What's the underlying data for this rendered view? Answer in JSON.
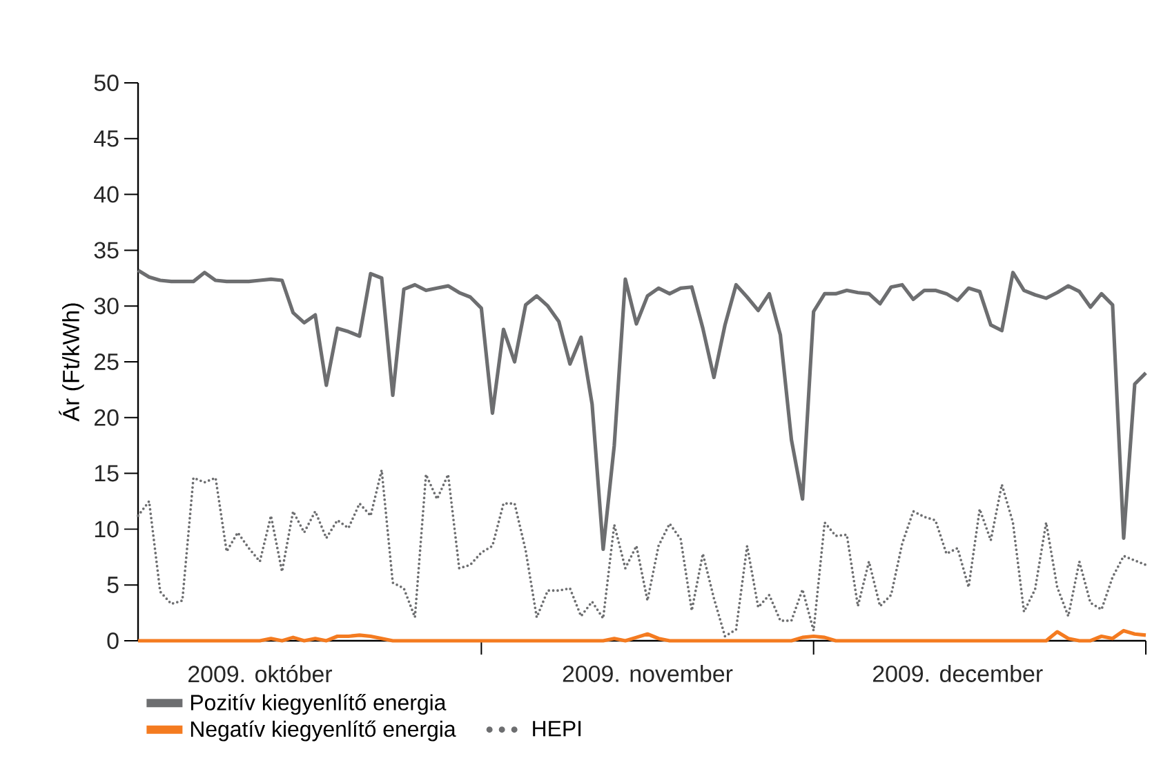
{
  "chart_data": {
    "type": "line",
    "ylabel": "Ár (Ft/kWh)",
    "x": [
      "2009-10-01",
      "2009-10-02",
      "2009-10-03",
      "2009-10-04",
      "2009-10-05",
      "2009-10-06",
      "2009-10-07",
      "2009-10-08",
      "2009-10-09",
      "2009-10-10",
      "2009-10-11",
      "2009-10-12",
      "2009-10-13",
      "2009-10-14",
      "2009-10-15",
      "2009-10-16",
      "2009-10-17",
      "2009-10-18",
      "2009-10-19",
      "2009-10-20",
      "2009-10-21",
      "2009-10-22",
      "2009-10-23",
      "2009-10-24",
      "2009-10-25",
      "2009-10-26",
      "2009-10-27",
      "2009-10-28",
      "2009-10-29",
      "2009-10-30",
      "2009-10-31",
      "2009-11-01",
      "2009-11-02",
      "2009-11-03",
      "2009-11-04",
      "2009-11-05",
      "2009-11-06",
      "2009-11-07",
      "2009-11-08",
      "2009-11-09",
      "2009-11-10",
      "2009-11-11",
      "2009-11-12",
      "2009-11-13",
      "2009-11-14",
      "2009-11-15",
      "2009-11-16",
      "2009-11-17",
      "2009-11-18",
      "2009-11-19",
      "2009-11-20",
      "2009-11-21",
      "2009-11-22",
      "2009-11-23",
      "2009-11-24",
      "2009-11-25",
      "2009-11-26",
      "2009-11-27",
      "2009-11-28",
      "2009-11-29",
      "2009-11-30",
      "2009-12-01",
      "2009-12-02",
      "2009-12-03",
      "2009-12-04",
      "2009-12-05",
      "2009-12-06",
      "2009-12-07",
      "2009-12-08",
      "2009-12-09",
      "2009-12-10",
      "2009-12-11",
      "2009-12-12",
      "2009-12-13",
      "2009-12-14",
      "2009-12-15",
      "2009-12-16",
      "2009-12-17",
      "2009-12-18",
      "2009-12-19",
      "2009-12-20",
      "2009-12-21",
      "2009-12-22",
      "2009-12-23",
      "2009-12-24",
      "2009-12-25",
      "2009-12-26",
      "2009-12-27",
      "2009-12-28",
      "2009-12-29",
      "2009-12-30",
      "2009-12-31"
    ],
    "series": [
      {
        "name": "Pozitív kiegyenlítő energia",
        "color": "#6d6e70",
        "line_style": "solid",
        "values": [
          33.2,
          32.6,
          32.3,
          32.2,
          32.2,
          32.2,
          33.0,
          32.3,
          32.2,
          32.2,
          32.2,
          32.3,
          32.4,
          32.3,
          29.4,
          28.5,
          29.2,
          22.9,
          28.0,
          27.7,
          27.3,
          32.9,
          32.5,
          22.0,
          31.5,
          31.9,
          31.4,
          31.6,
          31.8,
          31.2,
          30.8,
          29.8,
          20.4,
          27.9,
          25.0,
          30.1,
          30.9,
          30.0,
          28.6,
          24.8,
          27.2,
          21.2,
          8.2,
          17.5,
          32.4,
          28.4,
          30.9,
          31.6,
          31.1,
          31.6,
          31.7,
          28.0,
          23.6,
          28.3,
          31.9,
          30.8,
          29.6,
          31.1,
          27.4,
          18.0,
          12.7,
          29.5,
          31.1,
          31.1,
          31.4,
          31.2,
          31.1,
          30.2,
          31.7,
          31.9,
          30.6,
          31.4,
          31.4,
          31.1,
          30.5,
          31.6,
          31.3,
          28.3,
          27.8,
          33.0,
          31.4,
          31.0,
          30.7,
          31.2,
          31.8,
          31.3,
          29.9,
          31.1,
          30.1,
          9.2,
          23.0,
          24.0
        ]
      },
      {
        "name": "Negatív kiegyenlítő energia",
        "color": "#f47b20",
        "line_style": "solid",
        "values": [
          0,
          0,
          0,
          0,
          0,
          0,
          0,
          0,
          0,
          0,
          0,
          0,
          0.2,
          0,
          0.3,
          0,
          0.2,
          0,
          0.4,
          0.4,
          0.5,
          0.4,
          0.2,
          0,
          0,
          0,
          0,
          0,
          0,
          0,
          0,
          0,
          0,
          0,
          0,
          0,
          0,
          0,
          0,
          0,
          0,
          0,
          0,
          0.2,
          0,
          0.3,
          0.6,
          0.2,
          0,
          0,
          0,
          0,
          0,
          0,
          0,
          0,
          0,
          0,
          0,
          0,
          0.3,
          0.4,
          0.3,
          0,
          0,
          0,
          0,
          0,
          0,
          0,
          0,
          0,
          0,
          0,
          0,
          0,
          0,
          0,
          0,
          0,
          0,
          0,
          0,
          0.8,
          0.2,
          0,
          0,
          0.4,
          0.2,
          0.9,
          0.6,
          0.5
        ]
      },
      {
        "name": "HEPI",
        "color": "#6d6e70",
        "line_style": "dotted",
        "values": [
          11.2,
          12.5,
          4.4,
          3.3,
          3.6,
          14.6,
          14.2,
          14.6,
          8.0,
          9.7,
          8.3,
          7.1,
          11.2,
          6.2,
          11.6,
          9.7,
          11.6,
          9.2,
          10.8,
          10.1,
          12.3,
          11.2,
          15.3,
          5.2,
          4.7,
          2.1,
          14.9,
          12.7,
          14.9,
          6.5,
          6.8,
          7.9,
          8.5,
          12.3,
          12.3,
          8.1,
          2.1,
          4.5,
          4.5,
          4.7,
          2.2,
          3.5,
          2.0,
          10.4,
          6.5,
          8.5,
          3.6,
          8.5,
          10.5,
          9.1,
          2.7,
          7.8,
          3.8,
          0.4,
          1.0,
          8.5,
          3.0,
          4.1,
          1.8,
          1.8,
          4.6,
          0.9,
          10.6,
          9.4,
          9.5,
          3.1,
          7.1,
          3.1,
          4.1,
          8.7,
          11.6,
          11.1,
          10.8,
          7.8,
          8.3,
          4.8,
          11.8,
          9.0,
          14.0,
          10.6,
          2.6,
          4.6,
          10.6,
          4.8,
          2.2,
          7.1,
          3.4,
          2.8,
          5.7,
          7.6,
          7.2,
          6.8
        ]
      }
    ],
    "xlim": [
      "2009-10-01",
      "2009-12-31"
    ],
    "xticks": [
      {
        "value": "2009-10-12",
        "label": "2009. október"
      },
      {
        "value": "2009-11-01",
        "label": null
      },
      {
        "value": "2009-11-16",
        "label": "2009. november"
      },
      {
        "value": "2009-12-01",
        "label": null
      },
      {
        "value": "2009-12-14",
        "label": "2009. december"
      },
      {
        "value": "2009-12-31",
        "label": null
      }
    ],
    "ylim": [
      0,
      50
    ],
    "yticks": [
      0,
      5,
      10,
      15,
      20,
      25,
      30,
      35,
      40,
      45,
      50
    ],
    "grid": false,
    "legend": "bottom",
    "marker": "none"
  }
}
